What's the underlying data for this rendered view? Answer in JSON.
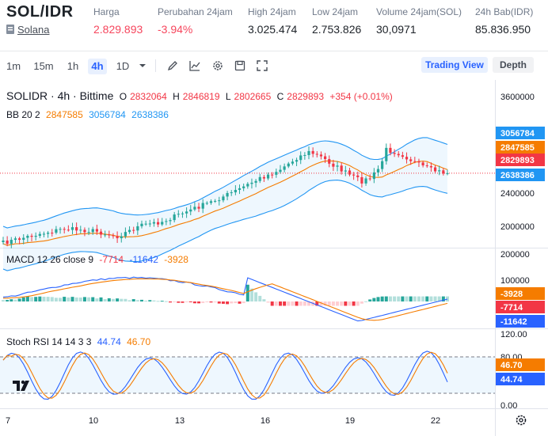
{
  "ticker": {
    "pair": "SOL/IDR",
    "coin_name": "Solana",
    "stats": [
      {
        "label": "Harga",
        "value": "2.829.893",
        "negative": true
      },
      {
        "label": "Perubahan 24jam",
        "value": "-3.94%",
        "negative": true
      },
      {
        "label": "High 24jam",
        "value": "3.025.474",
        "negative": false
      },
      {
        "label": "Low 24jam",
        "value": "2.753.826",
        "negative": false
      },
      {
        "label": "Volume 24jam(SOL)",
        "value": "30,0971",
        "negative": false
      },
      {
        "label": "24h Bab(IDR)",
        "value": "85.836.950",
        "negative": false
      }
    ]
  },
  "toolbar": {
    "intervals": [
      "1m",
      "15m",
      "1h",
      "4h",
      "1D"
    ],
    "active_interval": "4h",
    "view_buttons": {
      "trading_view": "Trading View",
      "depth": "Depth"
    },
    "icons": [
      "chevron-down-icon",
      "pencil-icon",
      "line-chart-icon",
      "gear-icon",
      "save-icon",
      "fullscreen-icon"
    ]
  },
  "main_legend": {
    "symbol": "SOLIDR · 4h · Bittime",
    "o_label": "O",
    "o_value": "2832064",
    "h_label": "H",
    "h_value": "2846819",
    "l_label": "L",
    "l_value": "2802665",
    "c_label": "C",
    "c_value": "2829893",
    "change": "+354 (+0.01%)"
  },
  "bb_legend": {
    "name": "BB 20 2",
    "basis": "2847585",
    "upper": "3056784",
    "lower": "2638386"
  },
  "macd_legend": {
    "name": "MACD 12 26 close 9",
    "histogram": "-7714",
    "macd": "-11642",
    "signal": "-3928"
  },
  "stoch_legend": {
    "name": "Stoch RSI 14 14 3 3",
    "k": "44.74",
    "d": "46.70"
  },
  "price_axis": {
    "ticks": [
      "3600000",
      "2400000",
      "2000000"
    ],
    "tags": [
      {
        "value": "3056784",
        "color": "#2196f3"
      },
      {
        "value": "2847585",
        "color": "#f57c00"
      },
      {
        "value": "2829893",
        "color": "#f23645"
      },
      {
        "value": "2638386",
        "color": "#2196f3"
      }
    ]
  },
  "macd_axis": {
    "ticks": [
      "200000",
      "100000"
    ],
    "tags": [
      {
        "value": "-3928",
        "color": "#f57c00"
      },
      {
        "value": "-7714",
        "color": "#f23645"
      },
      {
        "value": "-11642",
        "color": "#2962ff"
      }
    ]
  },
  "stoch_axis": {
    "ticks": [
      "120.00",
      "80.00",
      "0.00"
    ],
    "tags": [
      {
        "value": "46.70",
        "color": "#f57c00"
      },
      {
        "value": "44.74",
        "color": "#2962ff"
      }
    ]
  },
  "time_axis": {
    "labels": [
      "7",
      "10",
      "13",
      "16",
      "19",
      "22"
    ]
  },
  "colors": {
    "up": "#26a69a",
    "down": "#f23645",
    "bb": "#2196f3",
    "basis": "#f57c00",
    "macd": "#2962ff",
    "signal": "#f57c00"
  }
}
